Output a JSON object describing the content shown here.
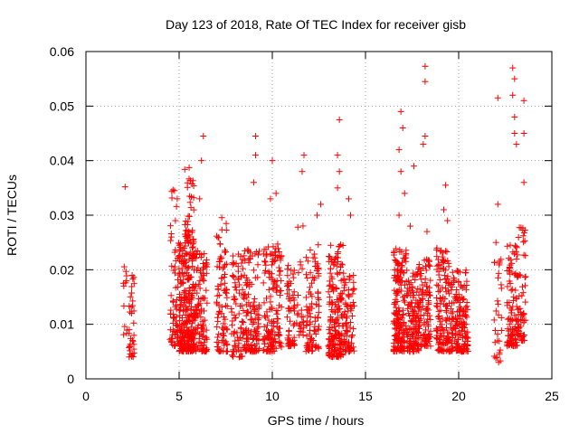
{
  "chart_data": {
    "type": "scatter",
    "title": "Day 123 of 2018, Rate Of TEC Index for receiver gisb",
    "xlabel": "GPS time / hours",
    "ylabel": "ROTI / TECUs",
    "xlim": [
      0,
      25
    ],
    "ylim": [
      0,
      0.06
    ],
    "xticks": [
      0,
      5,
      10,
      15,
      20,
      25
    ],
    "xtick_labels": [
      "0",
      "5",
      "10",
      "15",
      "20",
      "25"
    ],
    "yticks": [
      0,
      0.01,
      0.02,
      0.03,
      0.04,
      0.05,
      0.06
    ],
    "ytick_labels": [
      "0",
      "0.01",
      "0.02",
      "0.03",
      "0.04",
      "0.05",
      "0.06"
    ],
    "grid": true,
    "marker": "+",
    "color": "#ff0000",
    "clusters": [
      {
        "x": [
          2.0,
          2.2
        ],
        "y": [
          0.008,
          0.021
        ],
        "n": 12,
        "extra": [
          [
            2.1,
            0.0352
          ]
        ]
      },
      {
        "x": [
          2.3,
          2.6
        ],
        "y": [
          0.004,
          0.019
        ],
        "n": 35
      },
      {
        "x": [
          4.5,
          5.0
        ],
        "y": [
          0.006,
          0.035
        ],
        "n": 70,
        "extra": [
          [
            4.8,
            0.029
          ],
          [
            4.9,
            0.033
          ]
        ]
      },
      {
        "x": [
          5.0,
          5.8
        ],
        "y": [
          0.005,
          0.025
        ],
        "n": 260
      },
      {
        "x": [
          5.3,
          5.8
        ],
        "y": [
          0.025,
          0.039
        ],
        "n": 40
      },
      {
        "x": [
          5.8,
          6.5
        ],
        "y": [
          0.005,
          0.024
        ],
        "n": 120,
        "extra": [
          [
            6.3,
            0.0445
          ],
          [
            6.2,
            0.04
          ],
          [
            6.1,
            0.033
          ]
        ]
      },
      {
        "x": [
          7.0,
          7.6
        ],
        "y": [
          0.005,
          0.03
        ],
        "n": 90
      },
      {
        "x": [
          7.8,
          8.4
        ],
        "y": [
          0.004,
          0.023
        ],
        "n": 70
      },
      {
        "x": [
          8.4,
          9.3
        ],
        "y": [
          0.005,
          0.024
        ],
        "n": 140,
        "extra": [
          [
            9.1,
            0.0445
          ],
          [
            9.1,
            0.041
          ],
          [
            9.0,
            0.036
          ]
        ]
      },
      {
        "x": [
          9.5,
          10.5
        ],
        "y": [
          0.005,
          0.025
        ],
        "n": 150,
        "extra": [
          [
            10.0,
            0.04
          ],
          [
            9.9,
            0.033
          ],
          [
            10.2,
            0.034
          ]
        ]
      },
      {
        "x": [
          10.8,
          11.2
        ],
        "y": [
          0.006,
          0.021
        ],
        "n": 60
      },
      {
        "x": [
          11.3,
          11.7
        ],
        "y": [
          0.008,
          0.03
        ],
        "n": 25,
        "extra": [
          [
            11.7,
            0.041
          ],
          [
            11.6,
            0.038
          ]
        ]
      },
      {
        "x": [
          11.8,
          12.5
        ],
        "y": [
          0.005,
          0.025
        ],
        "n": 90,
        "extra": [
          [
            12.6,
            0.032
          ],
          [
            12.4,
            0.03
          ]
        ]
      },
      {
        "x": [
          13.0,
          13.8
        ],
        "y": [
          0.004,
          0.025
        ],
        "n": 180,
        "extra": [
          [
            13.6,
            0.0475
          ],
          [
            13.5,
            0.041
          ],
          [
            13.6,
            0.038
          ],
          [
            13.5,
            0.035
          ]
        ]
      },
      {
        "x": [
          13.8,
          14.4
        ],
        "y": [
          0.005,
          0.02
        ],
        "n": 80,
        "extra": [
          [
            14.2,
            0.03
          ],
          [
            14.1,
            0.033
          ]
        ]
      },
      {
        "x": [
          16.5,
          17.2
        ],
        "y": [
          0.005,
          0.024
        ],
        "n": 170,
        "extra": [
          [
            16.9,
            0.049
          ],
          [
            17.0,
            0.046
          ],
          [
            16.8,
            0.042
          ],
          [
            16.9,
            0.038
          ],
          [
            17.1,
            0.034
          ],
          [
            16.8,
            0.03
          ]
        ]
      },
      {
        "x": [
          17.2,
          18.0
        ],
        "y": [
          0.005,
          0.021
        ],
        "n": 150,
        "extra": [
          [
            17.6,
            0.039
          ],
          [
            17.4,
            0.028
          ]
        ]
      },
      {
        "x": [
          18.0,
          18.5
        ],
        "y": [
          0.006,
          0.022
        ],
        "n": 80,
        "extra": [
          [
            18.2,
            0.0573
          ],
          [
            18.2,
            0.0545
          ],
          [
            18.2,
            0.0445
          ],
          [
            18.1,
            0.043
          ],
          [
            18.3,
            0.027
          ]
        ]
      },
      {
        "x": [
          18.8,
          19.5
        ],
        "y": [
          0.005,
          0.024
        ],
        "n": 130,
        "extra": [
          [
            19.3,
            0.0355
          ],
          [
            19.4,
            0.029
          ],
          [
            19.2,
            0.031
          ]
        ]
      },
      {
        "x": [
          19.5,
          20.5
        ],
        "y": [
          0.005,
          0.02
        ],
        "n": 170
      },
      {
        "x": [
          21.9,
          22.3
        ],
        "y": [
          0.003,
          0.022
        ],
        "n": 30,
        "extra": [
          [
            22.1,
            0.0515
          ],
          [
            22.1,
            0.032
          ],
          [
            22.0,
            0.025
          ]
        ]
      },
      {
        "x": [
          22.6,
          23.2
        ],
        "y": [
          0.006,
          0.025
        ],
        "n": 110,
        "extra": [
          [
            22.9,
            0.057
          ],
          [
            23.0,
            0.055
          ],
          [
            22.9,
            0.052
          ],
          [
            23.0,
            0.048
          ],
          [
            23.1,
            0.043
          ],
          [
            23.0,
            0.045
          ]
        ]
      },
      {
        "x": [
          23.2,
          23.6
        ],
        "y": [
          0.007,
          0.028
        ],
        "n": 55,
        "extra": [
          [
            23.5,
            0.051
          ],
          [
            23.5,
            0.045
          ],
          [
            23.5,
            0.036
          ]
        ]
      }
    ]
  }
}
